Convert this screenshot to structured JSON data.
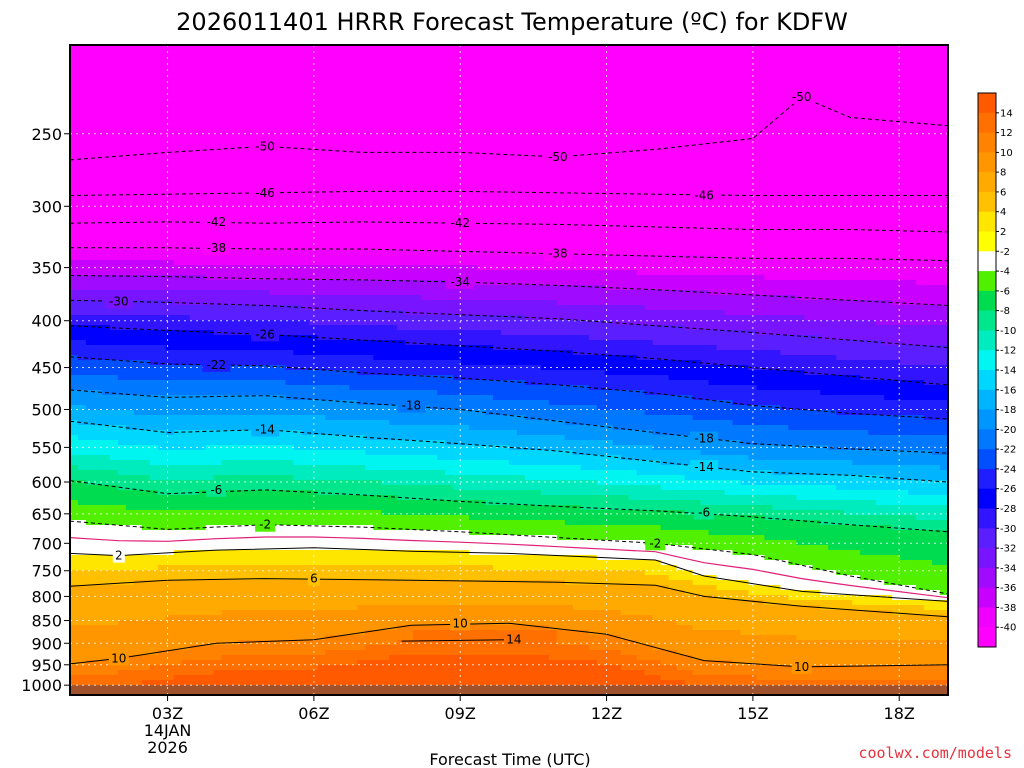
{
  "chart_data": {
    "type": "heatmap",
    "title": "2026011401 HRRR Forecast Temperature (ºC) for KDFW",
    "xlabel": "Forecast Time (UTC)",
    "ylabel": "",
    "x_ticks": [
      "03Z",
      "06Z",
      "09Z",
      "12Z",
      "15Z",
      "18Z"
    ],
    "x_tick_values": [
      3,
      6,
      9,
      12,
      15,
      18
    ],
    "x_range": [
      1,
      19
    ],
    "date_label": [
      "14JAN",
      "2026"
    ],
    "y_ticks": [
      250,
      300,
      350,
      400,
      450,
      500,
      550,
      600,
      650,
      700,
      750,
      800,
      850,
      900,
      950,
      1000
    ],
    "y_range": [
      200,
      1025
    ],
    "y_scale": "log",
    "y_reversed": true,
    "ground_color": "#a0522d",
    "colorbar": {
      "labels": [
        "14",
        "12",
        "10",
        "8",
        "6",
        "4",
        "2",
        "-2",
        "-4",
        "-6",
        "-8",
        "-10",
        "-12",
        "-14",
        "-16",
        "-18",
        "-20",
        "-22",
        "-24",
        "-26",
        "-28",
        "-30",
        "-32",
        "-34",
        "-36",
        "-38",
        "-40"
      ],
      "colors": [
        "#ff5a00",
        "#ff7000",
        "#ff8200",
        "#ff9600",
        "#ffaa00",
        "#ffc000",
        "#ffe600",
        "#ffff00",
        "#ffffff",
        "#50f000",
        "#00dc50",
        "#00e68c",
        "#00ebbe",
        "#00f5f0",
        "#00d7ff",
        "#00b4ff",
        "#0096ff",
        "#0078ff",
        "#0050ff",
        "#1e1eff",
        "#0000ff",
        "#3214ff",
        "#5a1eff",
        "#7814ff",
        "#a00aff",
        "#c800ff",
        "#f000ff",
        "#ff00ff"
      ]
    },
    "series": [
      {
        "level": 14,
        "points": [
          [
            7.8,
            895
          ],
          [
            10.1,
            892
          ]
        ]
      },
      {
        "level": 10,
        "points": [
          [
            1,
            948
          ],
          [
            2,
            935
          ],
          [
            4,
            900
          ],
          [
            6,
            892
          ],
          [
            8,
            860
          ],
          [
            10,
            856
          ],
          [
            12,
            880
          ],
          [
            14,
            940
          ],
          [
            16,
            955
          ],
          [
            19,
            950
          ]
        ]
      },
      {
        "level": 6,
        "points": [
          [
            1,
            780
          ],
          [
            3,
            768
          ],
          [
            5,
            765
          ],
          [
            8,
            768
          ],
          [
            11,
            772
          ],
          [
            13,
            778
          ],
          [
            14,
            800
          ],
          [
            16,
            820
          ],
          [
            19,
            842
          ]
        ]
      },
      {
        "level": 2,
        "points": [
          [
            1,
            718
          ],
          [
            2,
            722
          ],
          [
            4,
            712
          ],
          [
            6,
            708
          ],
          [
            8,
            714
          ],
          [
            10,
            718
          ],
          [
            12,
            726
          ],
          [
            13,
            730
          ],
          [
            14,
            760
          ],
          [
            16,
            790
          ],
          [
            19,
            810
          ]
        ]
      },
      {
        "level": -2,
        "points": [
          [
            1,
            662
          ],
          [
            3,
            676
          ],
          [
            5,
            668
          ],
          [
            7,
            672
          ],
          [
            9,
            680
          ],
          [
            11,
            690
          ],
          [
            13,
            700
          ],
          [
            15,
            720
          ],
          [
            17,
            760
          ],
          [
            19,
            795
          ]
        ]
      },
      {
        "level": -6,
        "points": [
          [
            1,
            598
          ],
          [
            3,
            618
          ],
          [
            5,
            612
          ],
          [
            7,
            620
          ],
          [
            9,
            630
          ],
          [
            11,
            638
          ],
          [
            13,
            645
          ],
          [
            15,
            655
          ],
          [
            17,
            668
          ],
          [
            19,
            680
          ]
        ]
      },
      {
        "level": -14,
        "points": [
          [
            1,
            515
          ],
          [
            3,
            530
          ],
          [
            5,
            526
          ],
          [
            7,
            536
          ],
          [
            9,
            545
          ],
          [
            11,
            555
          ],
          [
            13,
            570
          ],
          [
            15,
            585
          ],
          [
            17,
            590
          ],
          [
            19,
            600
          ]
        ]
      },
      {
        "level": -18,
        "points": [
          [
            1,
            476
          ],
          [
            3,
            485
          ],
          [
            5,
            483
          ],
          [
            7,
            492
          ],
          [
            9,
            500
          ],
          [
            11,
            515
          ],
          [
            13,
            530
          ],
          [
            15,
            545
          ],
          [
            17,
            552
          ],
          [
            19,
            558
          ]
        ]
      },
      {
        "level": -22,
        "points": [
          [
            1,
            438
          ],
          [
            3,
            446
          ],
          [
            5,
            448
          ],
          [
            7,
            456
          ],
          [
            9,
            462
          ],
          [
            11,
            470
          ],
          [
            13,
            480
          ],
          [
            15,
            495
          ],
          [
            17,
            505
          ],
          [
            19,
            512
          ]
        ]
      },
      {
        "level": -26,
        "points": [
          [
            1,
            405
          ],
          [
            3,
            410
          ],
          [
            5,
            414
          ],
          [
            7,
            420
          ],
          [
            9,
            426
          ],
          [
            11,
            432
          ],
          [
            13,
            440
          ],
          [
            15,
            450
          ],
          [
            17,
            460
          ],
          [
            19,
            470
          ]
        ]
      },
      {
        "level": -30,
        "points": [
          [
            1,
            380
          ],
          [
            3,
            382
          ],
          [
            5,
            385
          ],
          [
            7,
            390
          ],
          [
            9,
            394
          ],
          [
            11,
            398
          ],
          [
            13,
            405
          ],
          [
            15,
            412
          ],
          [
            17,
            420
          ],
          [
            19,
            428
          ]
        ]
      },
      {
        "level": -34,
        "points": [
          [
            1,
            357
          ],
          [
            3,
            358
          ],
          [
            5,
            360
          ],
          [
            7,
            361
          ],
          [
            9,
            363
          ],
          [
            11,
            366
          ],
          [
            13,
            370
          ],
          [
            15,
            375
          ],
          [
            17,
            380
          ],
          [
            19,
            385
          ]
        ]
      },
      {
        "level": -38,
        "points": [
          [
            1,
            333
          ],
          [
            3,
            333
          ],
          [
            5,
            334
          ],
          [
            7,
            334
          ],
          [
            9,
            336
          ],
          [
            11,
            338
          ],
          [
            13,
            340
          ],
          [
            15,
            342
          ],
          [
            17,
            342
          ],
          [
            19,
            344
          ]
        ]
      },
      {
        "level": -42,
        "points": [
          [
            1,
            313
          ],
          [
            3,
            312
          ],
          [
            5,
            313
          ],
          [
            7,
            312
          ],
          [
            9,
            313
          ],
          [
            11,
            314
          ],
          [
            13,
            316
          ],
          [
            15,
            318
          ],
          [
            17,
            318
          ],
          [
            19,
            320
          ]
        ]
      },
      {
        "level": -46,
        "points": [
          [
            1,
            292
          ],
          [
            3,
            291
          ],
          [
            5,
            290
          ],
          [
            7,
            289
          ],
          [
            9,
            289
          ],
          [
            11,
            290
          ],
          [
            13,
            291
          ],
          [
            15,
            292
          ],
          [
            17,
            292
          ],
          [
            19,
            292
          ]
        ]
      },
      {
        "level": -50,
        "points": [
          [
            1,
            267
          ],
          [
            3,
            262
          ],
          [
            5,
            258
          ],
          [
            7,
            262
          ],
          [
            9,
            262
          ],
          [
            11,
            265
          ],
          [
            13,
            260
          ],
          [
            15,
            253
          ],
          [
            16,
            228
          ],
          [
            17,
            240
          ],
          [
            19,
            245
          ]
        ]
      }
    ],
    "contour_labels": [
      {
        "text": "14",
        "x": 10.1,
        "p": 892
      },
      {
        "text": "10",
        "x": 2,
        "p": 935
      },
      {
        "text": "10",
        "x": 9,
        "p": 856
      },
      {
        "text": "10",
        "x": 16,
        "p": 955
      },
      {
        "text": "6",
        "x": 6,
        "p": 765
      },
      {
        "text": "2",
        "x": 2,
        "p": 722
      },
      {
        "text": "-2",
        "x": 5,
        "p": 668
      },
      {
        "text": "-2",
        "x": 13,
        "p": 700
      },
      {
        "text": "-6",
        "x": 4,
        "p": 612
      },
      {
        "text": "-6",
        "x": 14,
        "p": 648
      },
      {
        "text": "-14",
        "x": 5,
        "p": 526
      },
      {
        "text": "-14",
        "x": 14,
        "p": 578
      },
      {
        "text": "-18",
        "x": 8,
        "p": 495
      },
      {
        "text": "-18",
        "x": 14,
        "p": 538
      },
      {
        "text": "-22",
        "x": 4,
        "p": 447
      },
      {
        "text": "-26",
        "x": 5,
        "p": 414
      },
      {
        "text": "-30",
        "x": 2,
        "p": 381
      },
      {
        "text": "-34",
        "x": 9,
        "p": 363
      },
      {
        "text": "-38",
        "x": 4,
        "p": 333
      },
      {
        "text": "-38",
        "x": 11,
        "p": 338
      },
      {
        "text": "-42",
        "x": 4,
        "p": 312
      },
      {
        "text": "-42",
        "x": 9,
        "p": 313
      },
      {
        "text": "-46",
        "x": 5,
        "p": 290
      },
      {
        "text": "-46",
        "x": 14,
        "p": 292
      },
      {
        "text": "-50",
        "x": 5,
        "p": 258
      },
      {
        "text": "-50",
        "x": 11,
        "p": 265
      },
      {
        "text": "-50",
        "x": 16,
        "p": 228
      }
    ],
    "grid": true,
    "legend": "colorbar-right"
  },
  "footer": {
    "credit": "coolwx.com/models"
  }
}
